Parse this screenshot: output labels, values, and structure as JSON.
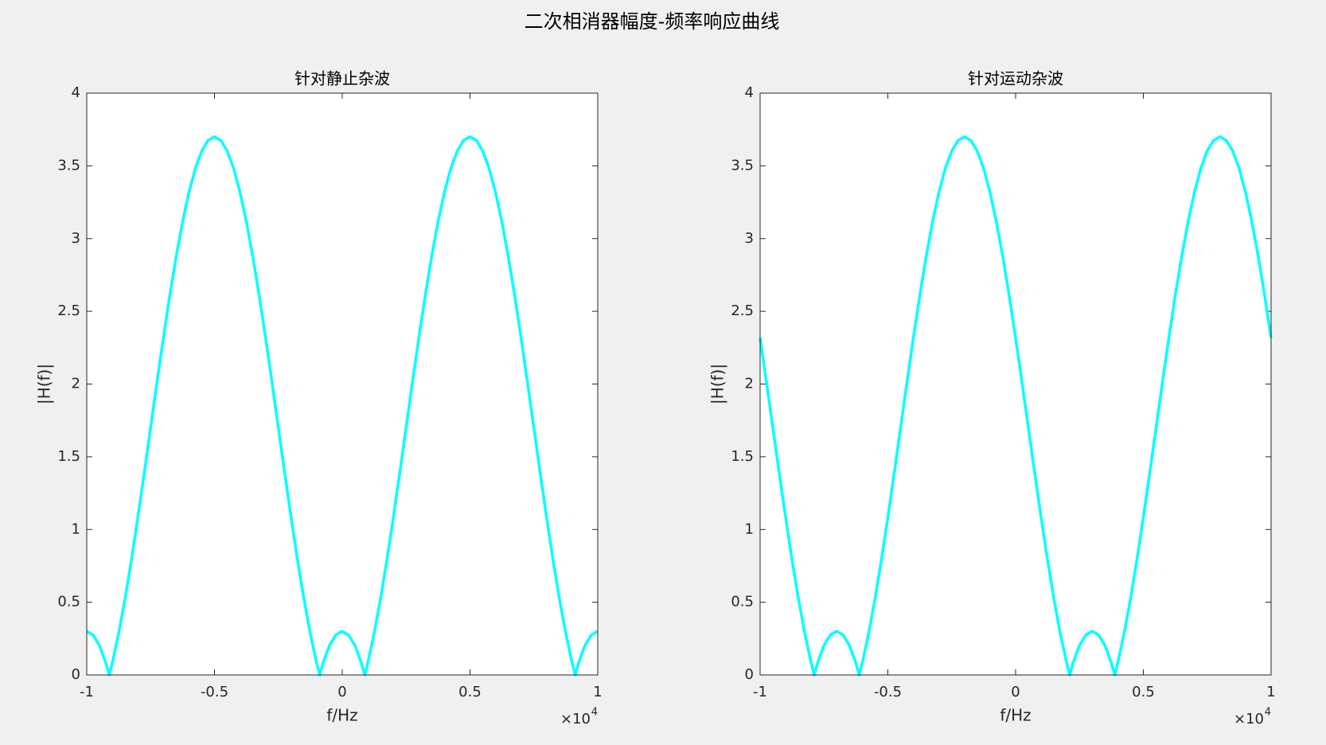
{
  "title": "二次相消器幅度-频率响应曲线",
  "chart_data": [
    {
      "type": "line",
      "title": "针对静止杂波",
      "xlabel": "f/Hz",
      "ylabel": "|H(f)|",
      "x_multiplier_base": "×10",
      "x_multiplier_exponent": "4",
      "x": [
        -10000,
        -9750,
        -9500,
        -9250,
        -9117,
        -9000,
        -8750,
        -8500,
        -8250,
        -8000,
        -7750,
        -7500,
        -7250,
        -7000,
        -6750,
        -6500,
        -6250,
        -6000,
        -5750,
        -5500,
        -5250,
        -5000,
        -4750,
        -4500,
        -4250,
        -4000,
        -3750,
        -3500,
        -3250,
        -3000,
        -2750,
        -2500,
        -2250,
        -2000,
        -1750,
        -1500,
        -1250,
        -1000,
        -883,
        -750,
        -500,
        -250,
        0,
        250,
        500,
        750,
        883,
        1000,
        1250,
        1500,
        1750,
        2000,
        2250,
        2500,
        2750,
        3000,
        3250,
        3500,
        3750,
        4000,
        4250,
        4500,
        4750,
        5000,
        5250,
        5500,
        5750,
        6000,
        6250,
        6500,
        6750,
        7000,
        7250,
        7500,
        7750,
        8000,
        8250,
        8500,
        8750,
        9000,
        9117,
        9250,
        9500,
        9750,
        10000
      ],
      "values": [
        0.3,
        0.275,
        0.202,
        0.082,
        0,
        0.082,
        0.286,
        0.524,
        0.792,
        1.082,
        1.387,
        1.7,
        2.013,
        2.318,
        2.608,
        2.876,
        3.114,
        3.318,
        3.482,
        3.602,
        3.675,
        3.7,
        3.675,
        3.602,
        3.482,
        3.318,
        3.114,
        2.876,
        2.608,
        2.318,
        2.013,
        1.7,
        1.387,
        1.082,
        0.792,
        0.524,
        0.286,
        0.082,
        0,
        0.082,
        0.202,
        0.275,
        0.3,
        0.275,
        0.202,
        0.082,
        0,
        0.082,
        0.286,
        0.524,
        0.792,
        1.082,
        1.387,
        1.7,
        2.013,
        2.318,
        2.608,
        2.876,
        3.114,
        3.318,
        3.482,
        3.602,
        3.675,
        3.7,
        3.675,
        3.602,
        3.482,
        3.318,
        3.114,
        2.876,
        2.608,
        2.318,
        2.013,
        1.7,
        1.387,
        1.082,
        0.792,
        0.524,
        0.286,
        0.082,
        0,
        0.082,
        0.202,
        0.275,
        0.3
      ],
      "color": "#00ffff",
      "xlim": [
        -10000,
        10000
      ],
      "xticks": [
        {
          "value": -10000,
          "label": "-1"
        },
        {
          "value": -5000,
          "label": "-0.5"
        },
        0,
        {
          "value": 5000,
          "label": "0.5"
        },
        {
          "value": 10000,
          "label": "1"
        }
      ],
      "ylim": [
        0,
        4
      ],
      "yticks": [
        0,
        0.5,
        1,
        1.5,
        2,
        2.5,
        3,
        3.5,
        4
      ],
      "grid": false
    },
    {
      "type": "line",
      "title": "针对运动杂波",
      "xlabel": "f/Hz",
      "ylabel": "|H(f)|",
      "x_multiplier_base": "×10",
      "x_multiplier_exponent": "4",
      "x": [
        -10000,
        -9750,
        -9500,
        -9250,
        -9000,
        -8750,
        -8500,
        -8250,
        -8000,
        -7883,
        -7750,
        -7500,
        -7250,
        -7000,
        -6750,
        -6500,
        -6250,
        -6117,
        -6000,
        -5750,
        -5500,
        -5250,
        -5000,
        -4750,
        -4500,
        -4250,
        -4000,
        -3750,
        -3500,
        -3250,
        -3000,
        -2750,
        -2500,
        -2250,
        -2000,
        -1750,
        -1500,
        -1250,
        -1000,
        -750,
        -500,
        -250,
        0,
        250,
        500,
        750,
        1000,
        1250,
        1500,
        1750,
        2000,
        2117,
        2250,
        2500,
        2750,
        3000,
        3250,
        3500,
        3750,
        3883,
        4000,
        4250,
        4500,
        4750,
        5000,
        5250,
        5500,
        5750,
        6000,
        6250,
        6500,
        6750,
        7000,
        7250,
        7500,
        7750,
        8000,
        8250,
        8500,
        8750,
        9000,
        9250,
        9500,
        9750,
        10000
      ],
      "values": [
        2.318,
        2.013,
        1.7,
        1.387,
        1.082,
        0.792,
        0.524,
        0.286,
        0.082,
        0,
        0.082,
        0.202,
        0.275,
        0.3,
        0.275,
        0.202,
        0.082,
        0,
        0.082,
        0.286,
        0.524,
        0.792,
        1.082,
        1.387,
        1.7,
        2.013,
        2.318,
        2.608,
        2.876,
        3.114,
        3.318,
        3.482,
        3.602,
        3.675,
        3.7,
        3.675,
        3.602,
        3.482,
        3.318,
        3.114,
        2.876,
        2.608,
        2.318,
        2.013,
        1.7,
        1.387,
        1.082,
        0.792,
        0.524,
        0.286,
        0.082,
        0,
        0.082,
        0.202,
        0.275,
        0.3,
        0.275,
        0.202,
        0.082,
        0,
        0.082,
        0.286,
        0.524,
        0.792,
        1.082,
        1.387,
        1.7,
        2.013,
        2.318,
        2.608,
        2.876,
        3.114,
        3.318,
        3.482,
        3.602,
        3.675,
        3.7,
        3.675,
        3.602,
        3.482,
        3.318,
        3.114,
        2.876,
        2.608,
        2.318
      ],
      "color": "#00ffff",
      "xlim": [
        -10000,
        10000
      ],
      "xticks": [
        {
          "value": -10000,
          "label": "-1"
        },
        {
          "value": -5000,
          "label": "-0.5"
        },
        0,
        {
          "value": 5000,
          "label": "0.5"
        },
        {
          "value": 10000,
          "label": "1"
        }
      ],
      "ylim": [
        0,
        4
      ],
      "yticks": [
        0,
        0.5,
        1,
        1.5,
        2,
        2.5,
        3,
        3.5,
        4
      ],
      "grid": false
    }
  ]
}
